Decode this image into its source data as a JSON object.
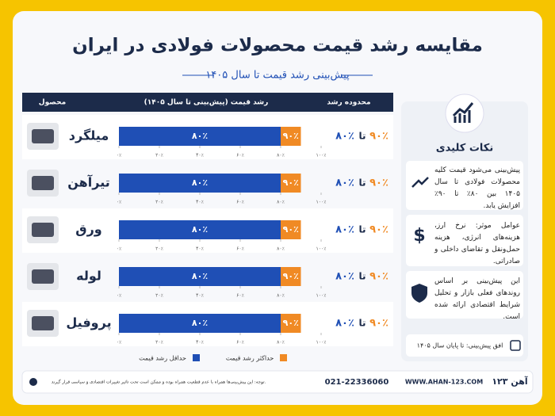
{
  "header": {
    "title": "مقایسه رشد قیمت محصولات فولادی در ایران",
    "subtitle": "پیش‌بینی رشد قیمت تا سال ۱۴۰۵"
  },
  "table_header": {
    "product": "محصول",
    "growth": "رشد قیمت (پیش‌بینی تا سال ۱۴۰۵)",
    "range": "محدوده رشد"
  },
  "chart_data": {
    "type": "range_bar",
    "categories": [
      "میلگرد",
      "تیرآهن",
      "ورق",
      "لوله",
      "پروفیل"
    ],
    "range_connector": "تا",
    "series": [
      {
        "name": "حداقل رشد قیمت",
        "color": "#1f4fb5",
        "values": [
          80,
          80,
          80,
          80,
          80
        ],
        "value_labels": [
          "۸۰٪",
          "۸۰٪",
          "۸۰٪",
          "۸۰٪",
          "۸۰٪"
        ]
      },
      {
        "name": "حداکثر رشد قیمت",
        "color": "#f08a24",
        "values": [
          90,
          90,
          90,
          90,
          90
        ],
        "value_labels": [
          "۹۰٪",
          "۹۰٪",
          "۹۰٪",
          "۹۰٪",
          "۹۰٪"
        ]
      }
    ],
    "xlim": [
      0,
      100
    ],
    "xticks": [
      {
        "value": 0,
        "label": "۰٪"
      },
      {
        "value": 20,
        "label": "۲۰٪"
      },
      {
        "value": 40,
        "label": "۴۰٪"
      },
      {
        "value": 60,
        "label": "۶۰٪"
      },
      {
        "value": 80,
        "label": "۸۰٪"
      },
      {
        "value": 100,
        "label": "۱۰۰٪"
      }
    ]
  },
  "notes": {
    "title": "نکات کلیدی",
    "items": [
      "پیش‌بینی می‌شود قیمت کلیه محصولات فولادی تا سال ۱۴۰۵ بین ۸۰٪ تا ۹۰٪ افزایش یابد.",
      "عوامل موثر: نرخ ارز، هزینه‌های انرژی، هزینه حمل‌ونقل و تقاضای داخلی و صادراتی.",
      "این پیش‌بینی بر اساس روندهای فعلی بازار و تحلیل شرایط اقتصادی ارائه شده است."
    ],
    "horizon": "افق پیش‌بینی: تا پایان سال ۱۴۰۵"
  },
  "footer": {
    "note": "توجه: این پیش‌بینی‌ها همراه با عدم قطعیت همراه بوده و ممکن است تحت تاثیر تغییرات اقتصادی و سیاسی قرار گیرند.",
    "phone": "021-22336060",
    "website": "WWW.AHAN-123.COM",
    "logo": "آهن ۱۲۳"
  }
}
